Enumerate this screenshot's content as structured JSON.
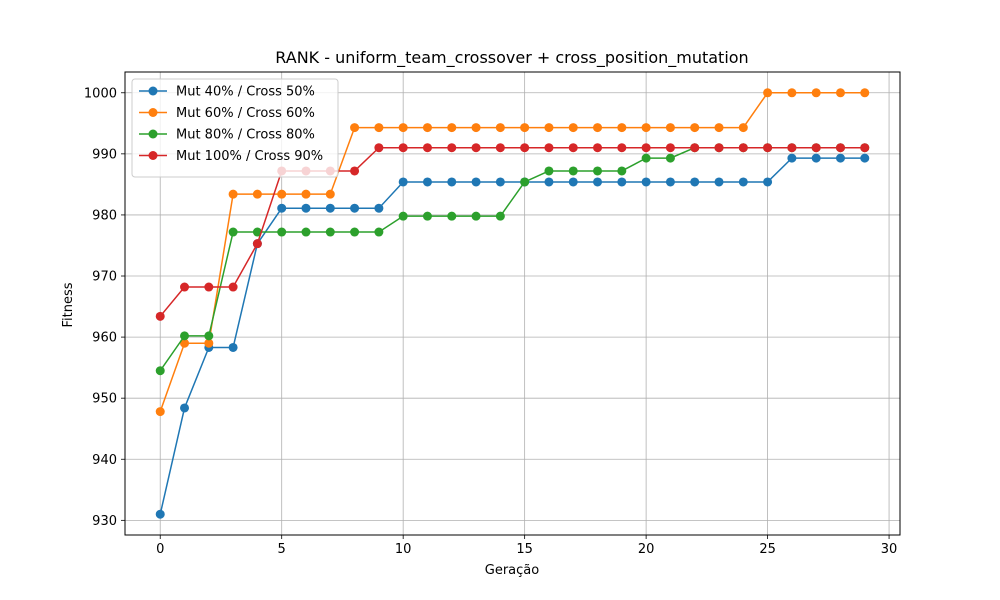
{
  "chart_data": {
    "type": "line",
    "title": "RANK - uniform_team_crossover + cross_position_mutation",
    "xlabel": "Geração",
    "ylabel": "Fitness",
    "xlim": [
      -1.45,
      30.45
    ],
    "ylim": [
      927.6,
      1003.4
    ],
    "xticks": [
      0,
      5,
      10,
      15,
      20,
      25,
      30
    ],
    "yticks": [
      930,
      940,
      950,
      960,
      970,
      980,
      990,
      1000
    ],
    "grid": true,
    "legend_position": "top-left",
    "x": [
      0,
      1,
      2,
      3,
      4,
      5,
      6,
      7,
      8,
      9,
      10,
      11,
      12,
      13,
      14,
      15,
      16,
      17,
      18,
      19,
      20,
      21,
      22,
      23,
      24,
      25,
      26,
      27,
      28,
      29
    ],
    "series": [
      {
        "name": "Mut 40% / Cross 50%",
        "color": "#1f77b4",
        "values": [
          931.0,
          948.4,
          958.3,
          958.3,
          975.3,
          981.1,
          981.1,
          981.1,
          981.1,
          981.1,
          985.4,
          985.4,
          985.4,
          985.4,
          985.4,
          985.4,
          985.4,
          985.4,
          985.4,
          985.4,
          985.4,
          985.4,
          985.4,
          985.4,
          985.4,
          985.4,
          989.3,
          989.3,
          989.3,
          989.3
        ]
      },
      {
        "name": "Mut 60% / Cross 60%",
        "color": "#ff7f0e",
        "values": [
          947.8,
          959.0,
          959.0,
          983.4,
          983.4,
          983.4,
          983.4,
          983.4,
          994.3,
          994.3,
          994.3,
          994.3,
          994.3,
          994.3,
          994.3,
          994.3,
          994.3,
          994.3,
          994.3,
          994.3,
          994.3,
          994.3,
          994.3,
          994.3,
          994.3,
          1000.0,
          1000.0,
          1000.0,
          1000.0,
          1000.0
        ]
      },
      {
        "name": "Mut 80% / Cross 80%",
        "color": "#2ca02c",
        "values": [
          954.5,
          960.2,
          960.2,
          977.2,
          977.2,
          977.2,
          977.2,
          977.2,
          977.2,
          977.2,
          979.8,
          979.8,
          979.8,
          979.8,
          979.8,
          985.4,
          987.2,
          987.2,
          987.2,
          987.2,
          989.3,
          989.3,
          991.0,
          991.0,
          991.0,
          991.0,
          991.0,
          991.0,
          991.0,
          991.0
        ]
      },
      {
        "name": "Mut 100% / Cross 90%",
        "color": "#d62728",
        "values": [
          963.4,
          968.2,
          968.2,
          968.2,
          975.3,
          987.2,
          987.2,
          987.2,
          987.2,
          991.0,
          991.0,
          991.0,
          991.0,
          991.0,
          991.0,
          991.0,
          991.0,
          991.0,
          991.0,
          991.0,
          991.0,
          991.0,
          991.0,
          991.0,
          991.0,
          991.0,
          991.0,
          991.0,
          991.0,
          991.0
        ]
      }
    ]
  }
}
